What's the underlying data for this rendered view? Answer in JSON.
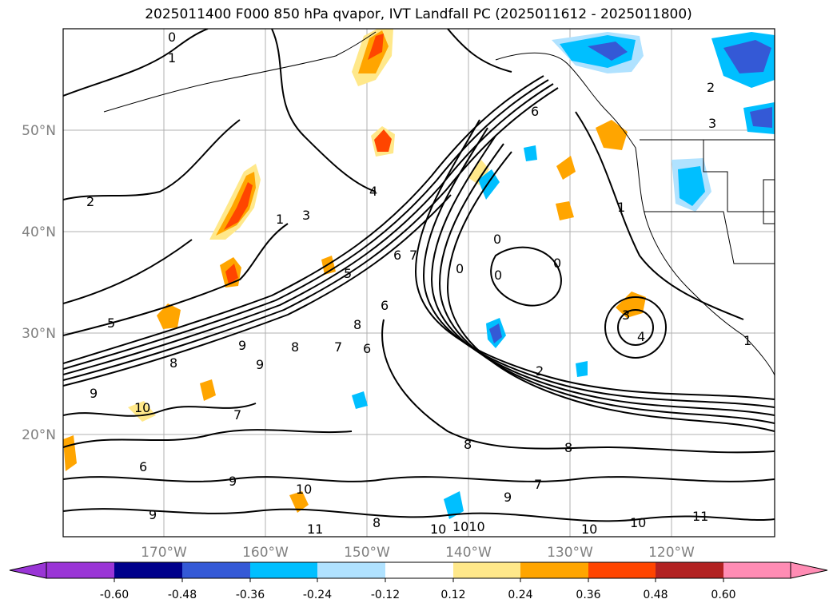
{
  "title": "2025011400 F000 850 hPa qvapor, IVT Landfall PC (2025011612 - 2025011800)",
  "lat_labels": [
    "50°N",
    "40°N",
    "30°N",
    "20°N"
  ],
  "lon_labels": [
    "170°W",
    "160°W",
    "150°W",
    "140°W",
    "130°W",
    "120°W"
  ],
  "colorbar": {
    "tick_labels": [
      "-0.60",
      "-0.48",
      "-0.36",
      "-0.24",
      "-0.12",
      "0.12",
      "0.24",
      "0.36",
      "0.48",
      "0.60"
    ],
    "colors": [
      "#9a35d6",
      "#00008b",
      "#3459d6",
      "#00bfff",
      "#b0e2ff",
      "#ffffff",
      "#ffe88a",
      "#ffa500",
      "#ff4500",
      "#b22222",
      "#ff8cb4"
    ]
  },
  "contour_labels": [
    "0",
    "1",
    "2",
    "3",
    "4",
    "5",
    "6",
    "7",
    "8",
    "9",
    "10",
    "11"
  ],
  "contour_label_instances": [
    {
      "text": "0"
    },
    {
      "text": "1"
    },
    {
      "text": "2"
    },
    {
      "text": "1"
    },
    {
      "text": "3"
    },
    {
      "text": "4"
    },
    {
      "text": "5"
    },
    {
      "text": "6"
    },
    {
      "text": "7"
    },
    {
      "text": "6"
    },
    {
      "text": "0"
    },
    {
      "text": "0"
    },
    {
      "text": "0"
    },
    {
      "text": "0"
    },
    {
      "text": "6"
    },
    {
      "text": "1"
    },
    {
      "text": "2"
    },
    {
      "text": "3"
    },
    {
      "text": "4"
    },
    {
      "text": "3"
    },
    {
      "text": "8"
    },
    {
      "text": "9"
    },
    {
      "text": "7"
    },
    {
      "text": "8"
    },
    {
      "text": "6"
    },
    {
      "text": "9"
    },
    {
      "text": "10"
    },
    {
      "text": "9"
    },
    {
      "text": "8"
    },
    {
      "text": "7"
    },
    {
      "text": "9"
    },
    {
      "text": "6"
    },
    {
      "text": "10"
    },
    {
      "text": "9"
    },
    {
      "text": "8"
    },
    {
      "text": "8"
    },
    {
      "text": "7"
    },
    {
      "text": "10"
    },
    {
      "text": "1010"
    },
    {
      "text": "10"
    },
    {
      "text": "10"
    },
    {
      "text": "11"
    },
    {
      "text": "11"
    },
    {
      "text": "8"
    },
    {
      "text": "9"
    },
    {
      "text": "2"
    },
    {
      "text": "1"
    },
    {
      "text": "5"
    }
  ]
}
